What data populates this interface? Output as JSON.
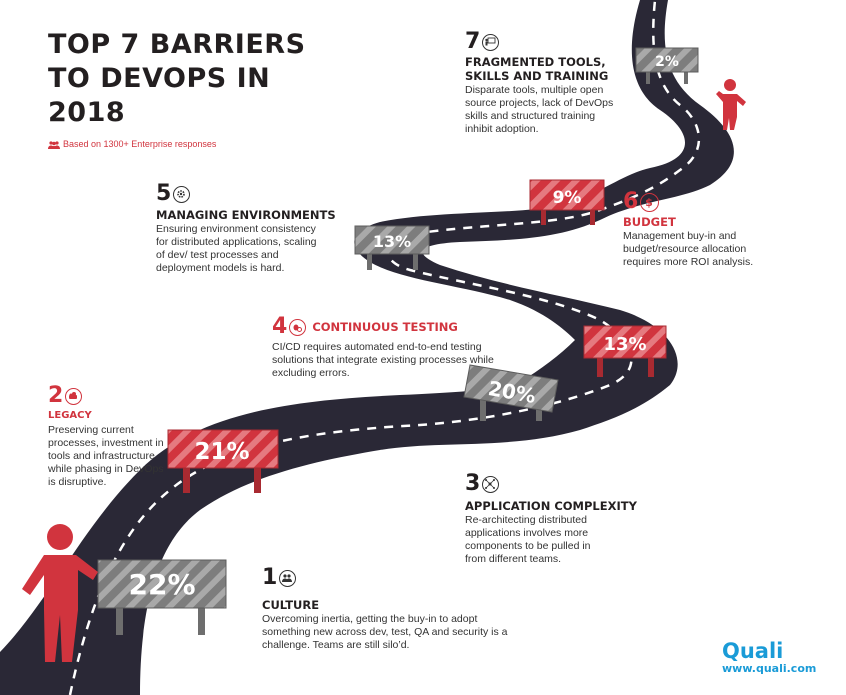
{
  "header": {
    "title": "TOP 7 BARRIERS TO DEVOPS IN 2018",
    "subtitle": "Based on 1300+ Enterprise responses"
  },
  "barriers": [
    {
      "rank": "1",
      "title": "CULTURE",
      "percent": "22%",
      "description": "Overcoming inertia, getting the buy-in to adopt something new across dev, test, QA and security is a challenge. Teams are still silo’d.",
      "icon": "people-icon"
    },
    {
      "rank": "2",
      "title": "LEGACY",
      "percent": "21%",
      "description": "Preserving current processes, investment in tools and infrastructure while phasing in DevOps is disruptive.",
      "icon": "legacy-icon"
    },
    {
      "rank": "3",
      "title": "APPLICATION COMPLEXITY",
      "percent": "20%",
      "description": "Re-architecting distributed applications involves more components to be pulled in from different teams.",
      "icon": "network-icon"
    },
    {
      "rank": "4",
      "title": "CONTINUOUS TESTING",
      "percent": "13%",
      "description": "CI/CD requires automated end-to-end testing solutions that integrate existing processes while excluding errors.",
      "icon": "bug-icon"
    },
    {
      "rank": "5",
      "title": "MANAGING ENVIRONMENTS",
      "percent": "13%",
      "description": "Ensuring environment consistency for distributed applications, scaling of dev/ test processes and deployment models is hard.",
      "icon": "gear-icon"
    },
    {
      "rank": "6",
      "title": "BUDGET",
      "percent": "9%",
      "description": "Management buy-in and budget/resource allocation requires more ROI analysis.",
      "icon": "dollar-icon"
    },
    {
      "rank": "7",
      "title": "FRAGMENTED TOOLS, SKILLS AND TRAINING",
      "percent": "2%",
      "description": "Disparate tools, multiple open source projects, lack of DevOps skills and structured training inhibit adoption.",
      "icon": "training-icon"
    }
  ],
  "brand": {
    "name": "Quali",
    "url": "www.quali.com"
  },
  "colors": {
    "road": "#2a2836",
    "red": "#d1343e",
    "gray": "#8a8a8a",
    "brand": "#1a9bd7"
  }
}
